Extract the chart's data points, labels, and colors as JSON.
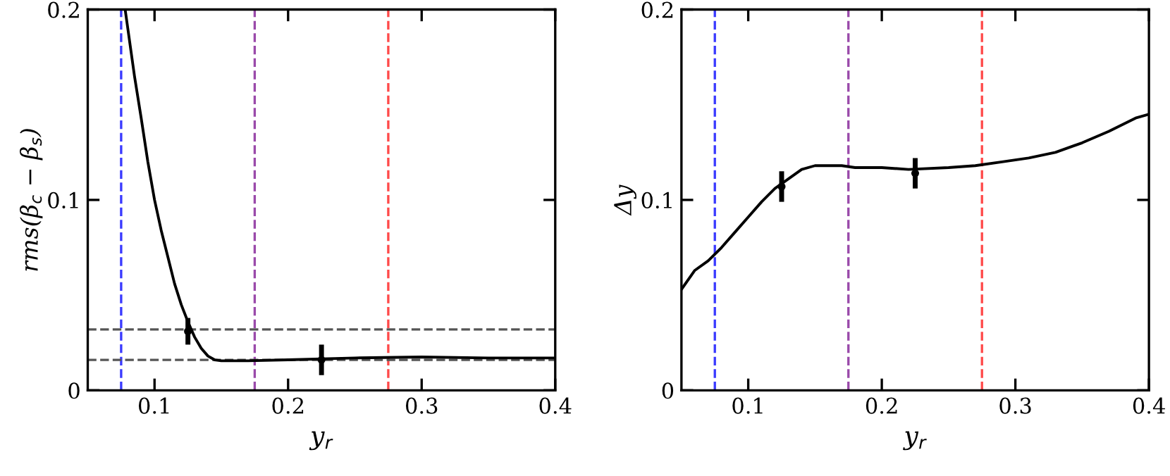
{
  "chart_data": [
    {
      "type": "line",
      "xlabel": "y$_{r}$",
      "ylabel": "rms(β$_{c}$ − β$_{s}$)",
      "xlim": [
        0.05,
        0.4
      ],
      "ylim": [
        0,
        0.2
      ],
      "xticks": [
        0.1,
        0.2,
        0.3,
        0.4
      ],
      "yticks": [
        0,
        0.1,
        0.2
      ],
      "grid": false,
      "legend": false,
      "series": [
        {
          "color": "#000000",
          "x": [
            0.078,
            0.085,
            0.09,
            0.095,
            0.1,
            0.105,
            0.11,
            0.115,
            0.12,
            0.125,
            0.13,
            0.135,
            0.14,
            0.145,
            0.15,
            0.16,
            0.17,
            0.2,
            0.25,
            0.3,
            0.35,
            0.4
          ],
          "values": [
            0.2,
            0.165,
            0.143,
            0.12,
            0.1,
            0.084,
            0.07,
            0.056,
            0.045,
            0.036,
            0.028,
            0.022,
            0.018,
            0.016,
            0.0155,
            0.0155,
            0.0155,
            0.016,
            0.017,
            0.0175,
            0.017,
            0.017
          ]
        },
        {
          "type": "scatter",
          "color": "#000000",
          "x": [
            0.125,
            0.225
          ],
          "values": [
            0.031,
            0.016
          ],
          "errors": [
            0.007,
            0.008
          ]
        }
      ],
      "ref_lines": [
        {
          "axis": "x",
          "value": 0.075,
          "color": "#3a3aff",
          "line_style": "dashed"
        },
        {
          "axis": "x",
          "value": 0.175,
          "color": "#9a4aaa",
          "line_style": "dashed"
        },
        {
          "axis": "x",
          "value": 0.275,
          "color": "#ff4a4a",
          "line_style": "dashed"
        },
        {
          "axis": "y",
          "value": 0.032,
          "color": "#555555",
          "line_style": "dashed"
        },
        {
          "axis": "y",
          "value": 0.016,
          "color": "#555555",
          "line_style": "dashed"
        }
      ]
    },
    {
      "type": "line",
      "xlabel": "y$_{r}$",
      "ylabel": "Δy",
      "xlim": [
        0.05,
        0.4
      ],
      "ylim": [
        0,
        0.2
      ],
      "xticks": [
        0.1,
        0.2,
        0.3,
        0.4
      ],
      "yticks": [
        0,
        0.1,
        0.2
      ],
      "grid": false,
      "legend": false,
      "series": [
        {
          "color": "#000000",
          "x": [
            0.05,
            0.06,
            0.07,
            0.08,
            0.09,
            0.1,
            0.11,
            0.12,
            0.13,
            0.14,
            0.15,
            0.16,
            0.17,
            0.18,
            0.2,
            0.22,
            0.25,
            0.27,
            0.29,
            0.31,
            0.33,
            0.35,
            0.37,
            0.39,
            0.4
          ],
          "values": [
            0.053,
            0.063,
            0.068,
            0.075,
            0.083,
            0.091,
            0.099,
            0.106,
            0.111,
            0.116,
            0.118,
            0.118,
            0.118,
            0.117,
            0.117,
            0.116,
            0.117,
            0.118,
            0.12,
            0.122,
            0.125,
            0.13,
            0.136,
            0.143,
            0.145
          ]
        },
        {
          "type": "scatter",
          "color": "#000000",
          "x": [
            0.125,
            0.225
          ],
          "values": [
            0.107,
            0.114
          ],
          "errors": [
            0.008,
            0.008
          ]
        }
      ],
      "ref_lines": [
        {
          "axis": "x",
          "value": 0.075,
          "color": "#3a3aff",
          "line_style": "dashed"
        },
        {
          "axis": "x",
          "value": 0.175,
          "color": "#9a4aaa",
          "line_style": "dashed"
        },
        {
          "axis": "x",
          "value": 0.275,
          "color": "#ff4a4a",
          "line_style": "dashed"
        }
      ]
    }
  ]
}
